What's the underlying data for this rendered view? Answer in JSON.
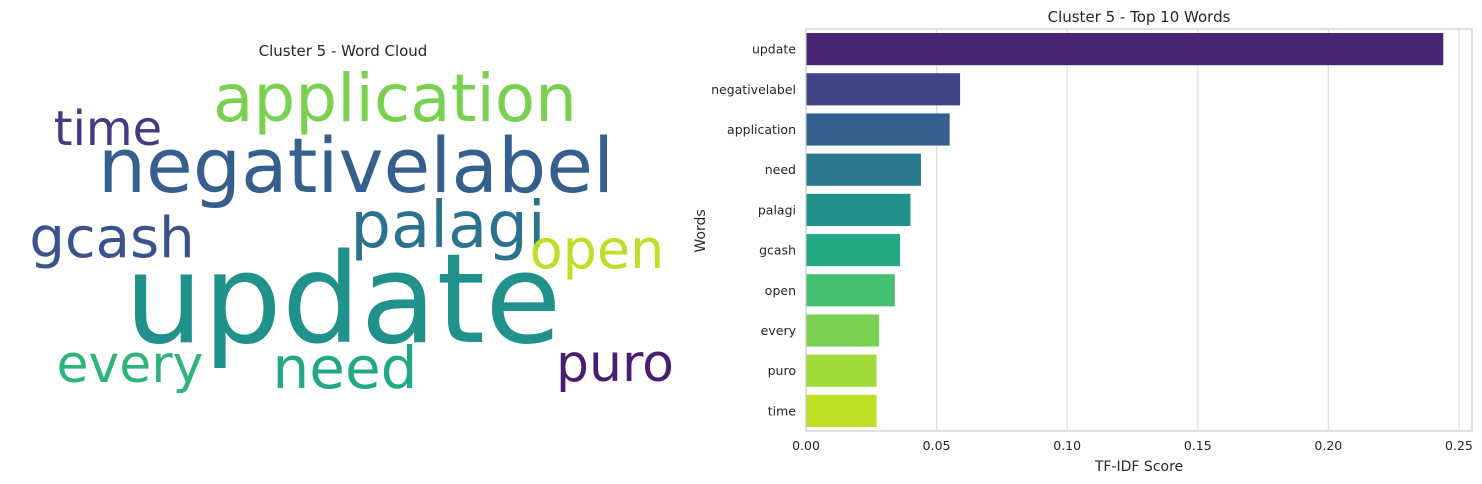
{
  "wordcloud": {
    "title": "Cluster 5 - Word Cloud",
    "words": [
      {
        "text": "update",
        "color": "#21918c"
      },
      {
        "text": "negativelabel",
        "color": "#355f8d"
      },
      {
        "text": "application",
        "color": "#7ad151"
      },
      {
        "text": "palagi",
        "color": "#2c718e"
      },
      {
        "text": "gcash",
        "color": "#3b528b"
      },
      {
        "text": "open",
        "color": "#bddf26"
      },
      {
        "text": "time",
        "color": "#443983"
      },
      {
        "text": "every",
        "color": "#2fb47c"
      },
      {
        "text": "need",
        "color": "#22a884"
      },
      {
        "text": "puro",
        "color": "#481f70"
      }
    ]
  },
  "chart_data": {
    "type": "bar",
    "orientation": "horizontal",
    "title": "Cluster 5 - Top 10 Words",
    "xlabel": "TF-IDF Score",
    "ylabel": "Words",
    "categories": [
      "update",
      "negativelabel",
      "application",
      "need",
      "palagi",
      "gcash",
      "open",
      "every",
      "puro",
      "time"
    ],
    "values": [
      0.244,
      0.059,
      0.055,
      0.044,
      0.04,
      0.036,
      0.034,
      0.028,
      0.027,
      0.027
    ],
    "colors": [
      "#482475",
      "#414487",
      "#355f8d",
      "#2a788e",
      "#21918c",
      "#22a884",
      "#44bf70",
      "#7ad151",
      "#a0da39",
      "#bddf26"
    ],
    "xlim": [
      0,
      0.255
    ],
    "xticks": [
      0.0,
      0.05,
      0.1,
      0.15,
      0.2,
      0.25
    ],
    "xtick_labels": [
      "0.00",
      "0.05",
      "0.10",
      "0.15",
      "0.20",
      "0.25"
    ],
    "grid": true
  }
}
